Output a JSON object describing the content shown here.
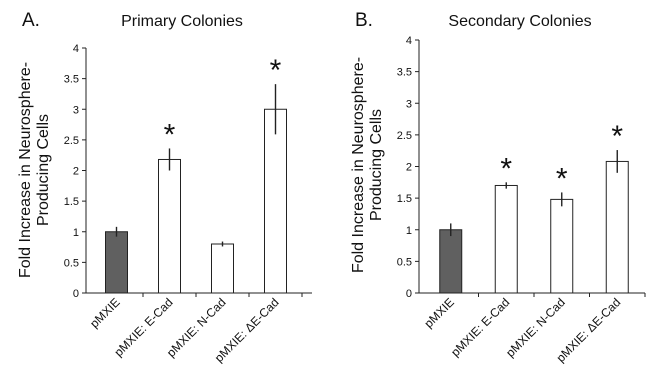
{
  "chart_data": [
    {
      "type": "bar",
      "panel_letter": "A.",
      "title": "Primary Colonies",
      "ylabel_lines": [
        "Fold Increase in Neurosphere-",
        "Producing Cells"
      ],
      "ylim": [
        0,
        4
      ],
      "yticks": [
        "0",
        "0.5",
        "1",
        "1.5",
        "2",
        "2.5",
        "3",
        "3.5",
        "4"
      ],
      "categories": [
        "pMXIE",
        "pMXIE: E-Cad",
        "pMXIE: N-Cad",
        "pMXIE: ΔE-Cad"
      ],
      "values": [
        1.0,
        2.18,
        0.8,
        3.0
      ],
      "errors": [
        0.08,
        0.18,
        0.04,
        0.41
      ],
      "significant": [
        false,
        true,
        false,
        true
      ],
      "significance_marker": "*",
      "bar_colors": [
        "#606060",
        "#ffffff",
        "#ffffff",
        "#ffffff"
      ],
      "grid": false
    },
    {
      "type": "bar",
      "panel_letter": "B.",
      "title": "Secondary Colonies",
      "ylabel_lines": [
        "Fold Increase in Neurosphere-",
        "Producing Cells"
      ],
      "ylim": [
        0,
        4
      ],
      "yticks": [
        "0",
        "0.5",
        "1",
        "1.5",
        "2",
        "2.5",
        "3",
        "3.5",
        "4"
      ],
      "categories": [
        "pMXIE",
        "pMXIE: E-Cad",
        "pMXIE: N-Cad",
        "pMXIE: ΔE-Cad"
      ],
      "values": [
        1.0,
        1.7,
        1.48,
        2.08
      ],
      "errors": [
        0.1,
        0.05,
        0.11,
        0.18
      ],
      "significant": [
        false,
        true,
        true,
        true
      ],
      "significance_marker": "*",
      "bar_colors": [
        "#606060",
        "#ffffff",
        "#ffffff",
        "#ffffff"
      ],
      "grid": false
    }
  ]
}
